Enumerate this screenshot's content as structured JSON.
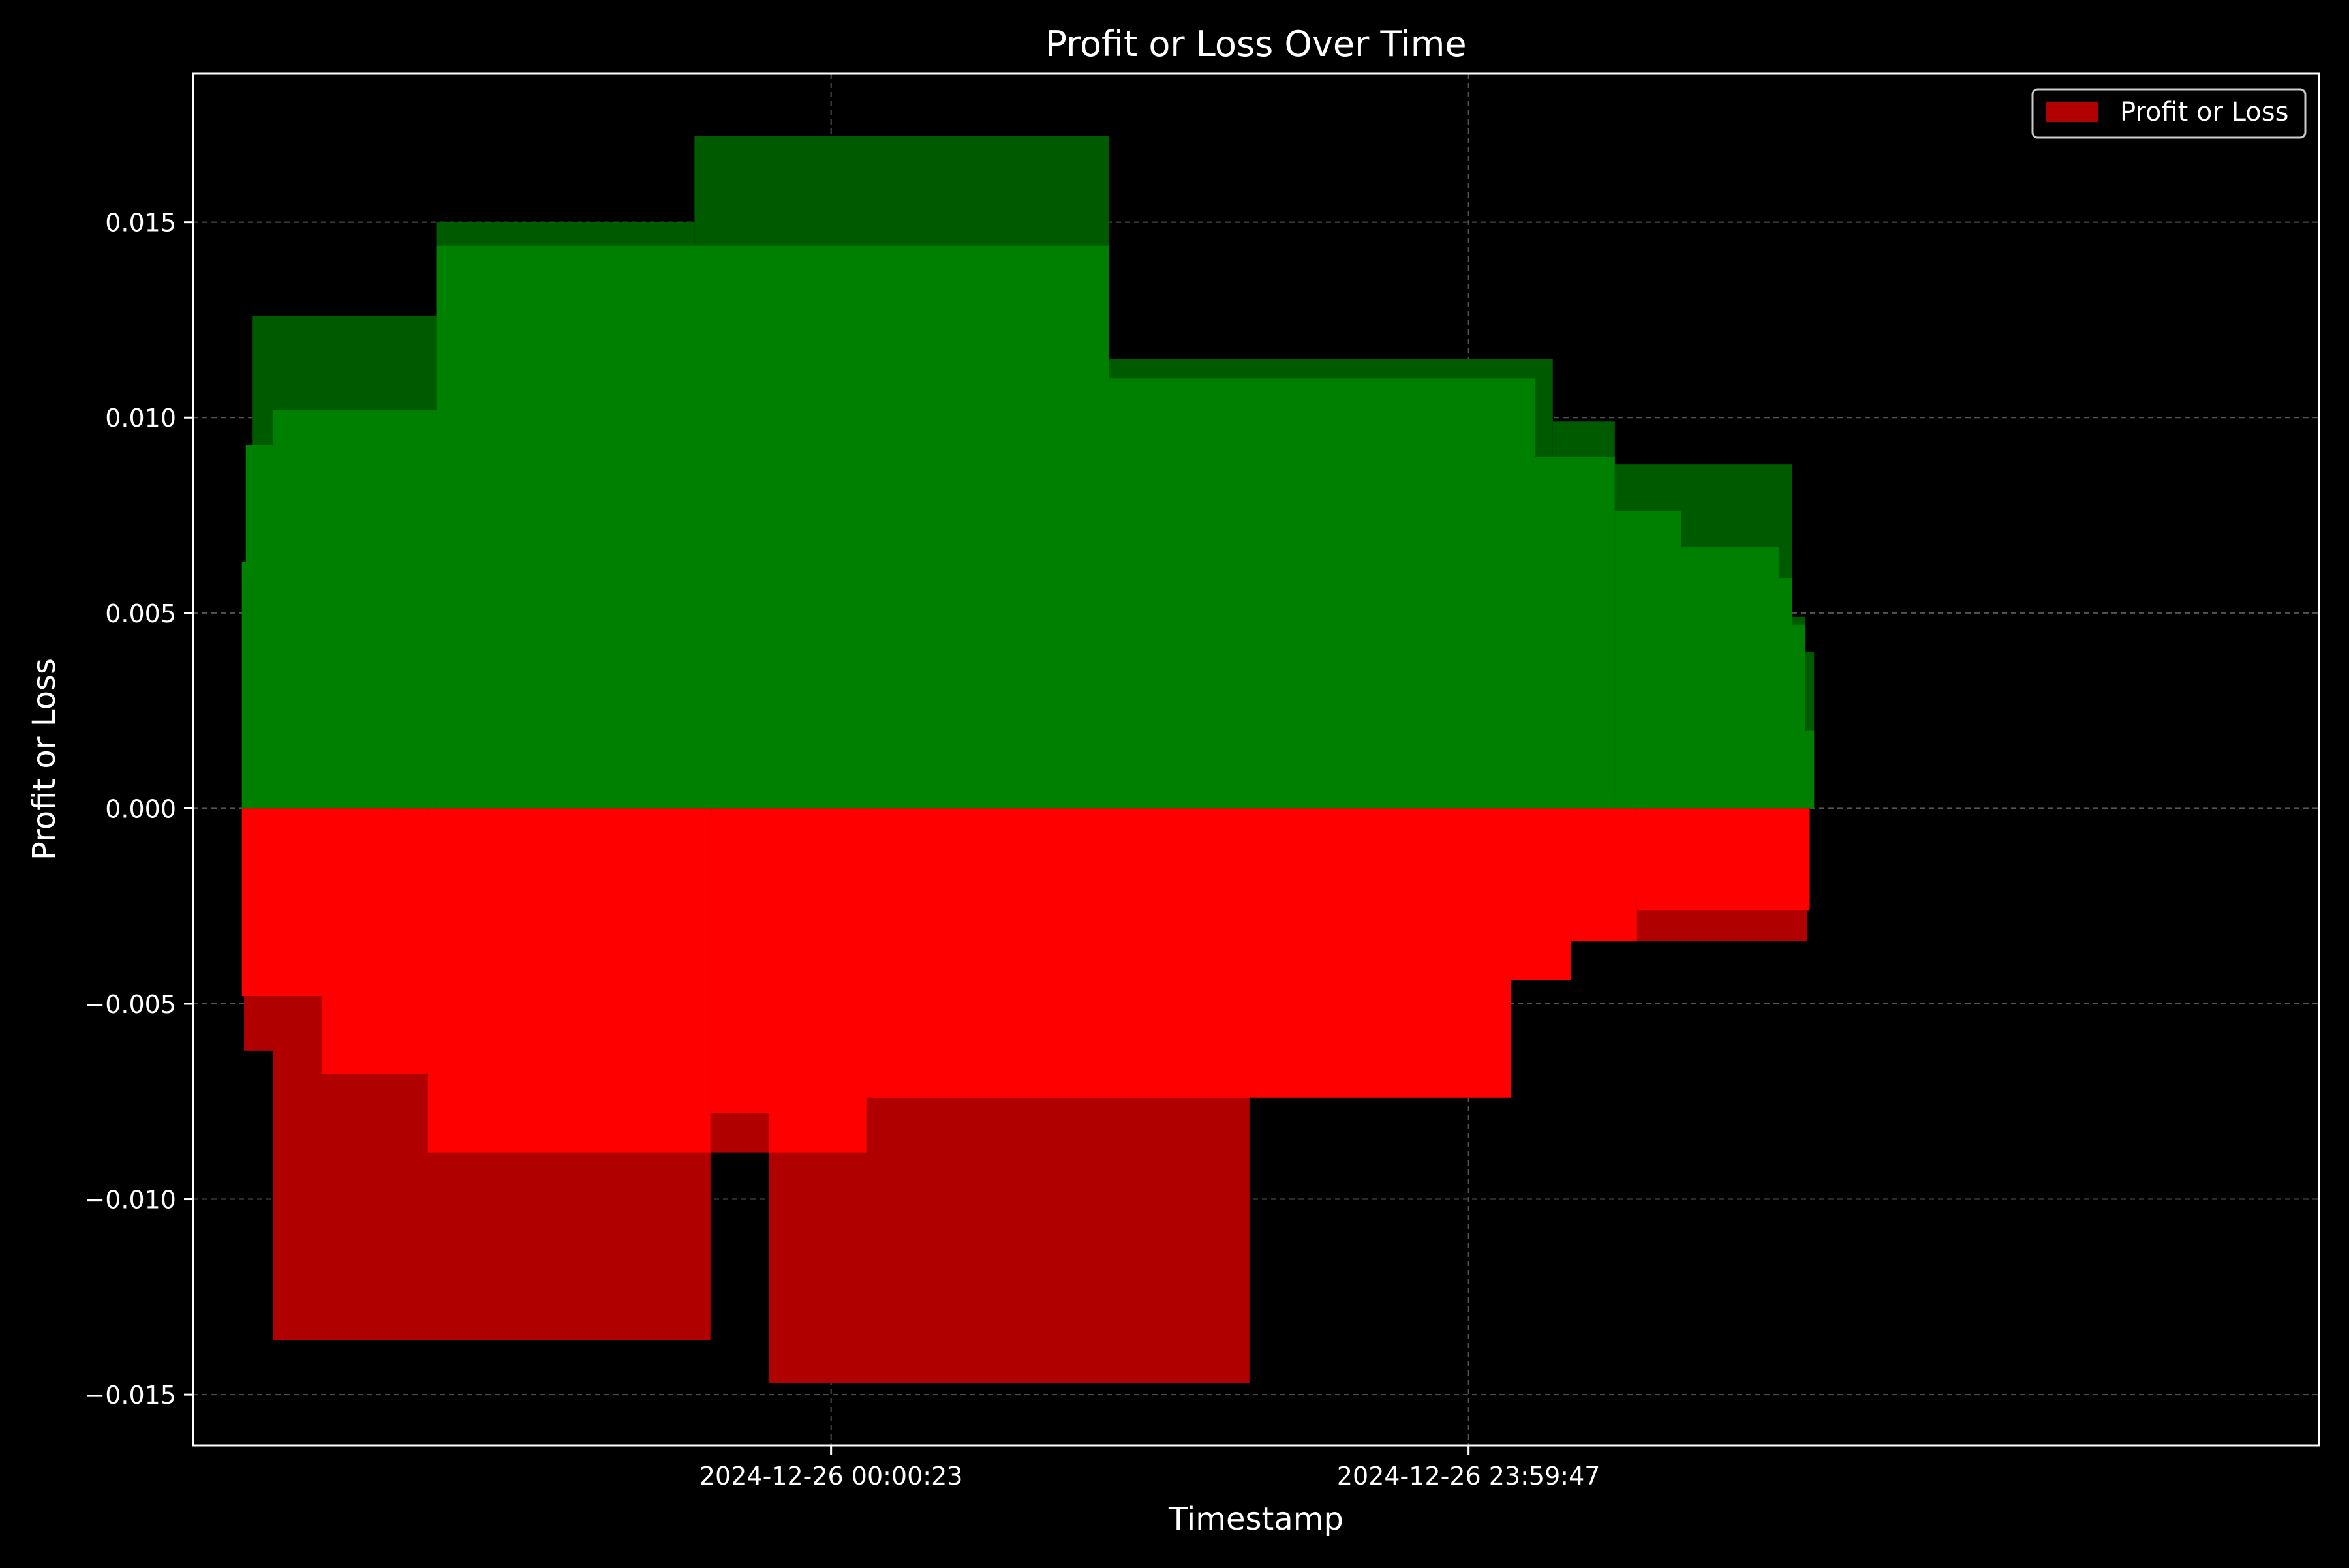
{
  "chart_data": {
    "type": "bar",
    "title": "Profit or Loss Over Time",
    "xlabel": "Timestamp",
    "ylabel": "Profit or Loss",
    "ylim": [
      -0.0163,
      0.0188
    ],
    "x_axis": {
      "range": [
        "2024-12-25 00:00:00",
        "2024-12-28 08:00:00"
      ],
      "ticks": [
        "2024-12-26 00:00:23",
        "2024-12-26 23:59:47"
      ]
    },
    "y_ticks": [
      "−0.015",
      "−0.010",
      "−0.005",
      "0.000",
      "0.005",
      "0.010",
      "0.015"
    ],
    "y_tick_values": [
      -0.015,
      -0.01,
      -0.005,
      0,
      0.005,
      0.01,
      0.015
    ],
    "grid": true,
    "legend": {
      "position": "top-right",
      "entries": [
        "Profit or Loss"
      ]
    },
    "colors": {
      "background": "#000000",
      "profit": "#008000",
      "profit_dark": "#005a00",
      "loss": "#ff0000",
      "loss_dark": "#b00000",
      "legend_patch": "#b00000",
      "axes": "#ffffff",
      "grid": "#555555"
    },
    "series": [
      {
        "name": "Profit or Loss",
        "bars": [
          {
            "start": "2024-12-25 02:13:00",
            "end": "2024-12-25 09:09:00",
            "value": 0.0126,
            "color": "#005a00"
          },
          {
            "start": "2024-12-25 09:09:00",
            "end": "2024-12-25 18:52:00",
            "value": 0.015,
            "color": "#005a00"
          },
          {
            "start": "2024-12-25 18:52:00",
            "end": "2024-12-26 10:28:00",
            "value": 0.0172,
            "color": "#005a00"
          },
          {
            "start": "2024-12-26 10:28:00",
            "end": "2024-12-27 03:10:00",
            "value": 0.0115,
            "color": "#005a00"
          },
          {
            "start": "2024-12-27 03:10:00",
            "end": "2024-12-27 05:30:00",
            "value": 0.0099,
            "color": "#005a00"
          },
          {
            "start": "2024-12-27 05:30:00",
            "end": "2024-12-27 12:10:00",
            "value": 0.0088,
            "color": "#005a00"
          },
          {
            "start": "2024-12-27 12:10:00",
            "end": "2024-12-27 12:40:00",
            "value": 0.0049,
            "color": "#005a00"
          },
          {
            "start": "2024-12-27 12:40:00",
            "end": "2024-12-27 13:00:00",
            "value": 0.004,
            "color": "#005a00"
          },
          {
            "start": "2024-12-25 01:59:00",
            "end": "2024-12-25 03:00:00",
            "value": 0.0093,
            "color": "#008000"
          },
          {
            "start": "2024-12-25 03:00:00",
            "end": "2024-12-25 09:09:00",
            "value": 0.0102,
            "color": "#008000"
          },
          {
            "start": "2024-12-25 09:09:00",
            "end": "2024-12-26 10:28:00",
            "value": 0.0144,
            "color": "#008000"
          },
          {
            "start": "2024-12-26 10:28:00",
            "end": "2024-12-27 02:30:00",
            "value": 0.011,
            "color": "#008000"
          },
          {
            "start": "2024-12-27 02:30:00",
            "end": "2024-12-27 05:30:00",
            "value": 0.009,
            "color": "#008000"
          },
          {
            "start": "2024-12-27 05:30:00",
            "end": "2024-12-27 08:00:00",
            "value": 0.0076,
            "color": "#008000"
          },
          {
            "start": "2024-12-27 08:00:00",
            "end": "2024-12-27 11:40:00",
            "value": 0.0067,
            "color": "#008000"
          },
          {
            "start": "2024-12-27 11:40:00",
            "end": "2024-12-27 12:10:00",
            "value": 0.0059,
            "color": "#008000"
          },
          {
            "start": "2024-12-27 12:10:00",
            "end": "2024-12-27 12:40:00",
            "value": 0.0047,
            "color": "#008000"
          },
          {
            "start": "2024-12-27 12:40:00",
            "end": "2024-12-27 13:00:00",
            "value": 0.002,
            "color": "#008000"
          },
          {
            "start": "2024-12-25 01:50:00",
            "end": "2024-12-25 02:13:00",
            "value": 0.0063,
            "color": "#008000"
          },
          {
            "start": "2024-12-25 01:55:00",
            "end": "2024-12-25 07:30:00",
            "value": -0.0062,
            "color": "#b00000"
          },
          {
            "start": "2024-12-25 03:00:00",
            "end": "2024-12-25 19:28:00",
            "value": -0.0136,
            "color": "#b00000"
          },
          {
            "start": "2024-12-25 19:28:00",
            "end": "2024-12-25 21:40:00",
            "value": -0.0088,
            "color": "#b00000"
          },
          {
            "start": "2024-12-25 21:40:00",
            "end": "2024-12-26 15:45:00",
            "value": -0.0147,
            "color": "#b00000"
          },
          {
            "start": "2024-12-26 15:45:00",
            "end": "2024-12-27 12:45:00",
            "value": -0.0034,
            "color": "#b00000"
          },
          {
            "start": "2024-12-27 12:20:00",
            "end": "2024-12-27 12:50:00",
            "value": -0.0026,
            "color": "#b00000"
          },
          {
            "start": "2024-12-25 01:50:00",
            "end": "2024-12-25 08:00:00",
            "value": -0.0048,
            "color": "#ff0000"
          },
          {
            "start": "2024-12-25 04:50:00",
            "end": "2024-12-25 08:50:00",
            "value": -0.0068,
            "color": "#ff0000"
          },
          {
            "start": "2024-12-25 08:50:00",
            "end": "2024-12-25 19:28:00",
            "value": -0.0088,
            "color": "#ff0000"
          },
          {
            "start": "2024-12-25 19:28:00",
            "end": "2024-12-25 21:40:00",
            "value": -0.0078,
            "color": "#ff0000"
          },
          {
            "start": "2024-12-25 21:40:00",
            "end": "2024-12-26 01:20:00",
            "value": -0.0088,
            "color": "#ff0000"
          },
          {
            "start": "2024-12-26 01:20:00",
            "end": "2024-12-26 00:40:00",
            "value": -0.0076,
            "color": "#ff0000"
          },
          {
            "start": "2024-12-26 01:20:00",
            "end": "2024-12-27 01:35:00",
            "value": -0.0074,
            "color": "#ff0000"
          },
          {
            "start": "2024-12-27 01:35:00",
            "end": "2024-12-27 03:50:00",
            "value": -0.0044,
            "color": "#ff0000"
          },
          {
            "start": "2024-12-27 03:50:00",
            "end": "2024-12-27 06:20:00",
            "value": -0.0034,
            "color": "#ff0000"
          },
          {
            "start": "2024-12-27 06:20:00",
            "end": "2024-12-27 12:50:00",
            "value": -0.0026,
            "color": "#ff0000"
          }
        ]
      }
    ]
  }
}
